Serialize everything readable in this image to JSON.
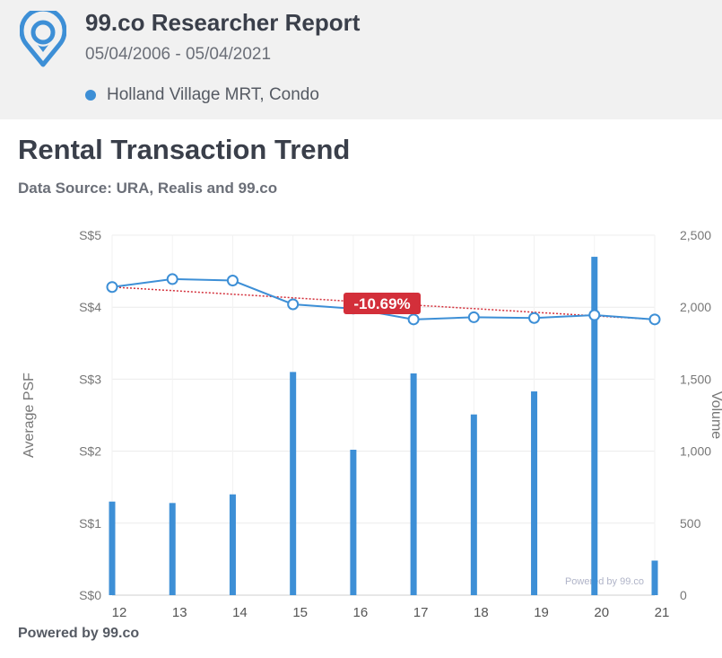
{
  "header": {
    "title": "99.co Researcher Report",
    "date_range": "05/04/2006 - 05/04/2021",
    "legend_label": "Holland Village MRT, Condo"
  },
  "section": {
    "title": "Rental Transaction Trend",
    "source": "Data Source: URA, Realis and 99.co"
  },
  "footer": {
    "text": "Powered by 99.co"
  },
  "colors": {
    "accent": "#3d8fd6",
    "trend": "#d32f3a",
    "badge": "#d32f3a"
  },
  "icons": {
    "logo": "map-pin-logo-icon"
  },
  "chart_data": {
    "type": "bar+line",
    "title": "",
    "categories": [
      "12",
      "13",
      "14",
      "15",
      "16",
      "17",
      "18",
      "19",
      "20",
      "21"
    ],
    "y_left": {
      "label": "Average PSF",
      "range": [
        0,
        5
      ],
      "ticks": [
        "S$0",
        "S$1",
        "S$2",
        "S$3",
        "S$4",
        "S$5"
      ]
    },
    "y_right": {
      "label": "Volume",
      "range": [
        0,
        2500
      ],
      "ticks": [
        "0",
        "500",
        "1,000",
        "1,500",
        "2,000",
        "2,500"
      ]
    },
    "series": [
      {
        "type": "bar",
        "axis": "right",
        "values": [
          650,
          640,
          700,
          1550,
          1010,
          1540,
          1255,
          1415,
          2350,
          240
        ]
      },
      {
        "type": "line",
        "axis": "left",
        "values": [
          4.28,
          4.39,
          4.37,
          4.04,
          3.98,
          3.83,
          3.86,
          3.85,
          3.89,
          3.83
        ]
      }
    ],
    "trend": {
      "start": 4.28,
      "end": 3.83,
      "label": "-10.69%"
    },
    "watermark": "Powered by 99.co",
    "grid": true
  }
}
